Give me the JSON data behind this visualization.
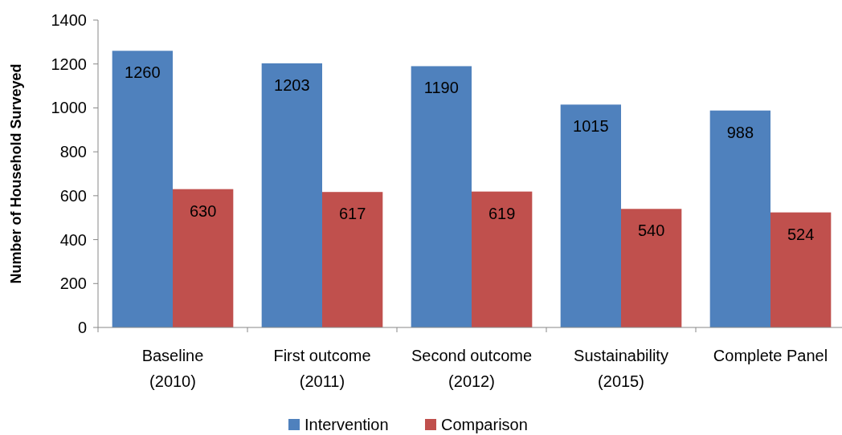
{
  "chart_data": {
    "type": "bar",
    "ylabel": "Number of Household Surveyed",
    "categories": [
      "Baseline\n(2010)",
      "First outcome\n(2011)",
      "Second outcome\n(2012)",
      "Sustainability\n(2015)",
      "Complete Panel"
    ],
    "series": [
      {
        "name": "Intervention",
        "color": "#4f81bd",
        "values": [
          1260,
          1203,
          1190,
          1015,
          988
        ]
      },
      {
        "name": "Comparison",
        "color": "#c0504d",
        "values": [
          630,
          617,
          619,
          540,
          524
        ]
      }
    ],
    "ylim": [
      0,
      1400
    ],
    "yticks": [
      0,
      200,
      400,
      600,
      800,
      1000,
      1200,
      1400
    ],
    "data_labels": true,
    "grid": false,
    "legend": "bottom"
  }
}
